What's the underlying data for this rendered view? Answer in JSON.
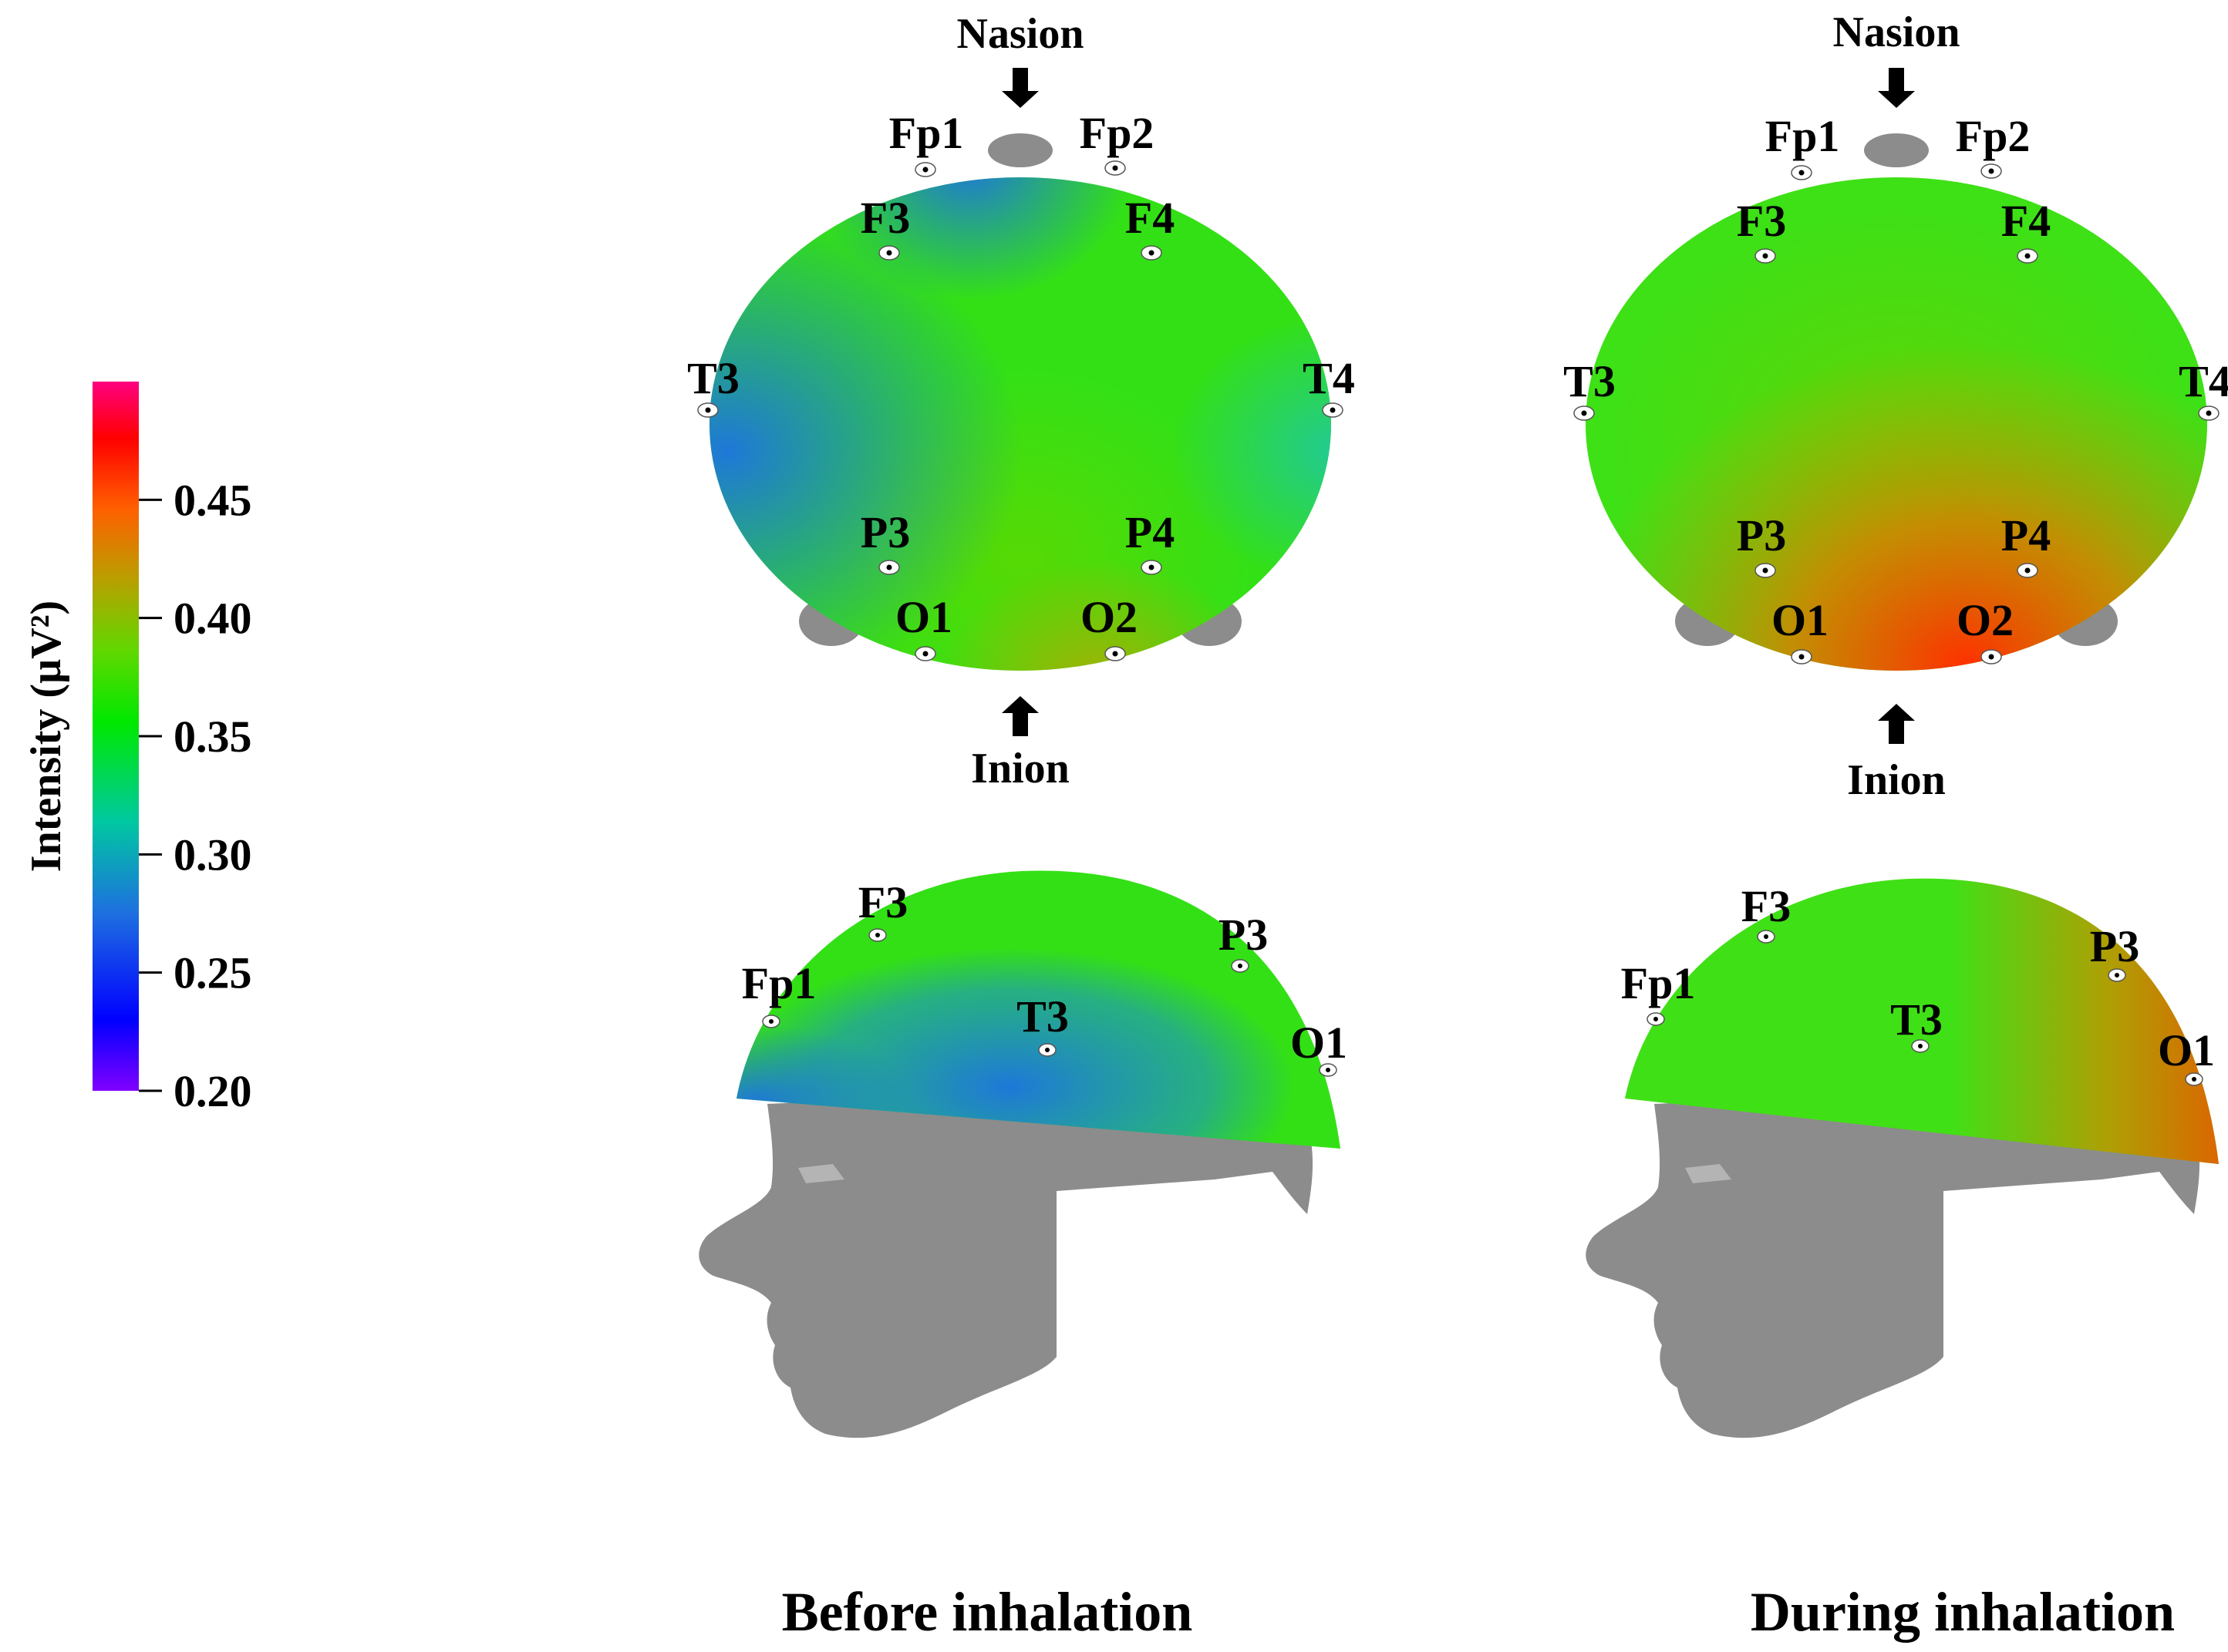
{
  "colorbar": {
    "title": "Intensity (µV²)",
    "ticks": [
      "0.45",
      "0.40",
      "0.35",
      "0.30",
      "0.25",
      "0.20"
    ],
    "tick_values": [
      0.45,
      0.4,
      0.35,
      0.3,
      0.25,
      0.2
    ],
    "range": [
      0.2,
      0.5
    ],
    "colors": [
      "#8000ff",
      "#0000ff",
      "#1e90ff",
      "#00c8a0",
      "#00e800",
      "#44e000",
      "#b8a000",
      "#ff6000",
      "#ff0000",
      "#ff0080"
    ]
  },
  "panels": [
    {
      "caption": "Before inhalation",
      "landmarks": {
        "nasion": "Nasion",
        "inion": "Inion"
      },
      "top_electrodes": [
        "Fp1",
        "Fp2",
        "F3",
        "F4",
        "T3",
        "T4",
        "P3",
        "P4",
        "O1",
        "O2"
      ],
      "side_electrodes": [
        "F3",
        "Fp1",
        "T3",
        "P3",
        "O1"
      ]
    },
    {
      "caption": "During inhalation",
      "landmarks": {
        "nasion": "Nasion",
        "inion": "Inion"
      },
      "top_electrodes": [
        "Fp1",
        "Fp2",
        "F3",
        "F4",
        "T3",
        "T4",
        "P3",
        "P4",
        "O1",
        "O2"
      ],
      "side_electrodes": [
        "F3",
        "Fp1",
        "T3",
        "P3",
        "O1"
      ]
    }
  ]
}
